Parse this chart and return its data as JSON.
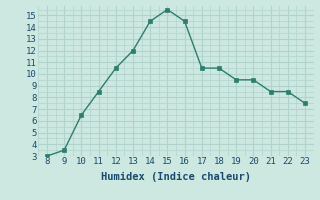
{
  "x": [
    8,
    9,
    10,
    11,
    12,
    13,
    14,
    15,
    16,
    17,
    18,
    19,
    20,
    21,
    22,
    23
  ],
  "y": [
    3.0,
    3.5,
    6.5,
    8.5,
    10.5,
    12.0,
    14.5,
    15.5,
    14.5,
    10.5,
    10.5,
    9.5,
    9.5,
    8.5,
    8.5,
    7.5
  ],
  "xlabel": "Humidex (Indice chaleur)",
  "ylim": [
    3,
    15.8
  ],
  "xlim": [
    7.5,
    23.5
  ],
  "yticks": [
    3,
    4,
    5,
    6,
    7,
    8,
    9,
    10,
    11,
    12,
    13,
    14,
    15
  ],
  "xticks": [
    8,
    9,
    10,
    11,
    12,
    13,
    14,
    15,
    16,
    17,
    18,
    19,
    20,
    21,
    22,
    23
  ],
  "line_color": "#2e7d6e",
  "marker_color": "#2e7d6e",
  "bg_color": "#cce8e0",
  "grid_major_color": "#b0d4cc",
  "grid_minor_color": "#b0d4cc",
  "label_color": "#1a4a6e",
  "font_name": "monospace",
  "tick_fontsize": 6.5,
  "xlabel_fontsize": 7.5
}
